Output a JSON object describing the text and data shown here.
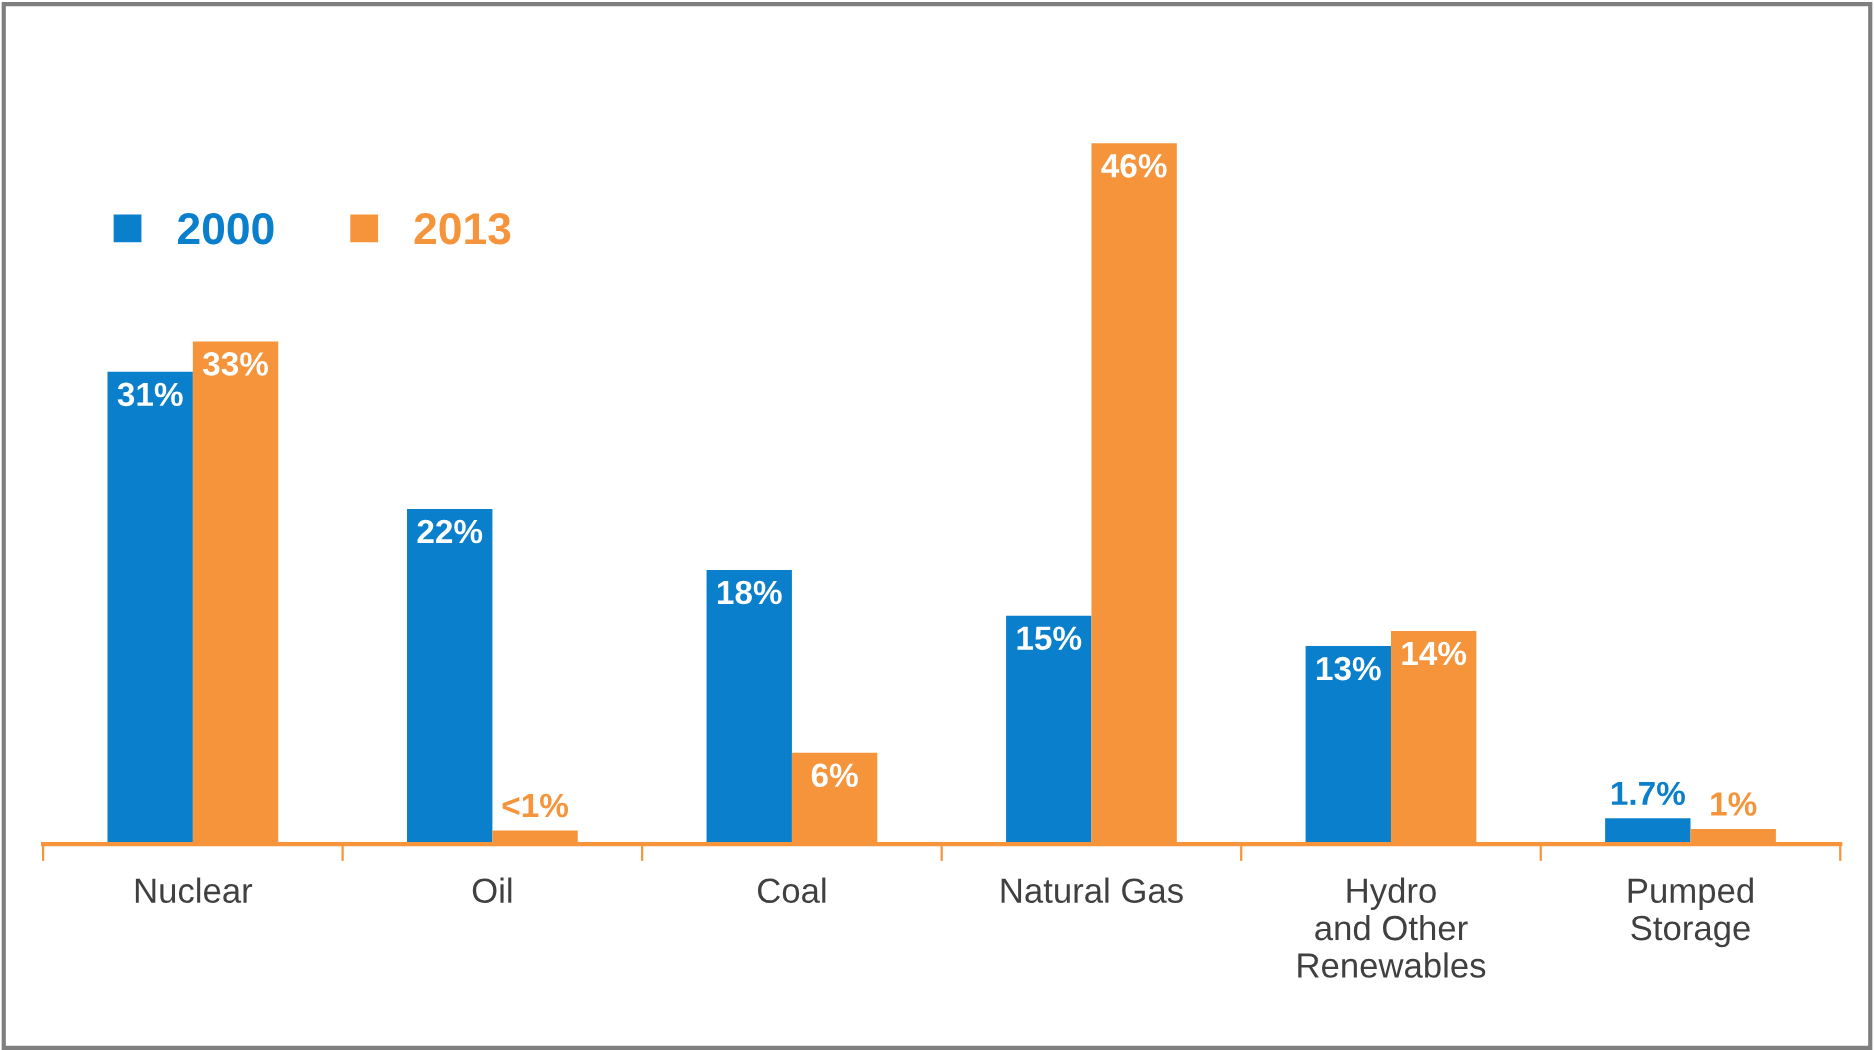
{
  "chart_data": {
    "type": "bar",
    "categories": [
      "Nuclear",
      "Oil",
      "Coal",
      "Natural Gas",
      "Hydro\nand Other\nRenewables",
      "Pumped\nStorage"
    ],
    "series": [
      {
        "name": "2000",
        "color": "#0a7fcc",
        "values": [
          31,
          22,
          18,
          15,
          13,
          1.7
        ],
        "value_labels": [
          "31%",
          "22%",
          "18%",
          "15%",
          "13%",
          "1.7%"
        ]
      },
      {
        "name": "2013",
        "color": "#f5943a",
        "values": [
          33,
          0.9,
          6,
          46,
          14,
          1
        ],
        "value_labels": [
          "33%",
          "<1%",
          "6%",
          "46%",
          "14%",
          "1%"
        ]
      }
    ],
    "tick_labels": "x",
    "grid": false,
    "legend": "top left"
  }
}
